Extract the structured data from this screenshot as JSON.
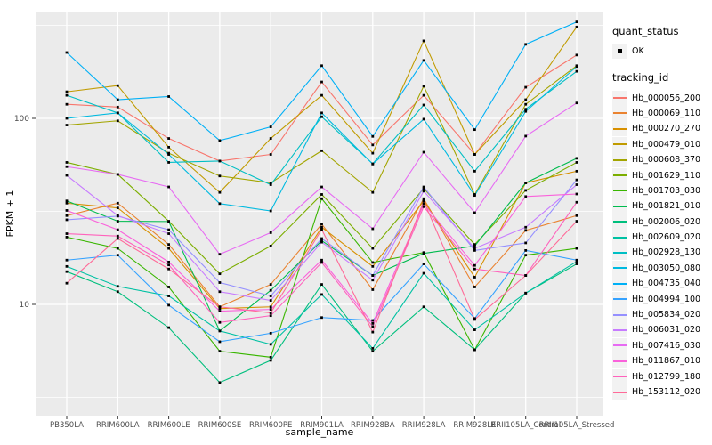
{
  "legend": {
    "quant_title": "quant_status",
    "quant_value": "OK",
    "tracking_title": "tracking_id"
  },
  "chart_data": {
    "type": "line",
    "title": "",
    "xlabel": "sample_name",
    "ylabel": "FPKM + 1",
    "y_scale": "log10",
    "y_tick_labels": [
      "100",
      "10"
    ],
    "y_tick_values": [
      100,
      10
    ],
    "y_minor_values": [
      3.162,
      31.62,
      316.2
    ],
    "ylim": [
      2.5,
      371
    ],
    "grid": "white major and minor on grey panel",
    "legend_position": "right",
    "panel_bg": "#EBEBEB",
    "point_color": "#000000",
    "categories": [
      "PB350LA",
      "RRIM600LA",
      "RRIM600LE",
      "RRIM600SE",
      "RRIM600PE",
      "RRIM901LA",
      "RRIM928BA",
      "RRIM928LA",
      "RRIM928LE",
      "RRII105LA_Control",
      "RRII105LA_Stressed"
    ],
    "series": [
      {
        "name": "Hb_000056_200",
        "color": "#F8766D",
        "values": [
          119,
          115,
          78,
          59,
          64,
          157,
          72,
          133,
          64,
          147,
          219
        ]
      },
      {
        "name": "Hb_000069_110",
        "color": "#EA8331",
        "values": [
          30,
          35,
          21,
          9.7,
          12.8,
          27,
          12,
          37,
          12.4,
          25,
          30
        ]
      },
      {
        "name": "Hb_000270_270",
        "color": "#D89000",
        "values": [
          35,
          33,
          20,
          9.5,
          9.7,
          26,
          16,
          36,
          14,
          45,
          52
        ]
      },
      {
        "name": "Hb_000479_010",
        "color": "#C09B00",
        "values": [
          139,
          150,
          70,
          40,
          78,
          133,
          65,
          261,
          64,
          126,
          310
        ]
      },
      {
        "name": "Hb_000608_370",
        "color": "#A3A500",
        "values": [
          92,
          97,
          65,
          49,
          45,
          67,
          40,
          149,
          39,
          119,
          192
        ]
      },
      {
        "name": "Hb_001629_110",
        "color": "#7CAE00",
        "values": [
          58,
          50,
          28,
          14.6,
          20.6,
          39,
          20,
          42,
          21,
          41,
          58
        ]
      },
      {
        "name": "Hb_001703_030",
        "color": "#39B600",
        "values": [
          23,
          20,
          12.4,
          5.6,
          5.2,
          37,
          16.8,
          19,
          5.7,
          18.4,
          20
        ]
      },
      {
        "name": "Hb_001821_010",
        "color": "#00BB4E",
        "values": [
          36,
          28,
          27.9,
          7.2,
          11.9,
          22,
          14.3,
          18.8,
          20.6,
          45,
          61
        ]
      },
      {
        "name": "Hb_002006_020",
        "color": "#00BF7D",
        "values": [
          15,
          11.7,
          7.5,
          3.8,
          5.0,
          12.8,
          5.6,
          9.7,
          5.7,
          11.5,
          16.5
        ]
      },
      {
        "name": "Hb_002609_020",
        "color": "#00C1A3",
        "values": [
          16,
          12.5,
          11.1,
          7.2,
          6.1,
          11.3,
          5.8,
          14.7,
          7.3,
          11.5,
          17
        ]
      },
      {
        "name": "Hb_002928_130",
        "color": "#00BFC4",
        "values": [
          133,
          107,
          58,
          59,
          44,
          102,
          57,
          118,
          52,
          112,
          179
        ]
      },
      {
        "name": "Hb_003050_080",
        "color": "#00BAE0",
        "values": [
          100,
          107,
          64,
          34.8,
          31.8,
          107,
          56.8,
          99,
          38.5,
          109,
          190
        ]
      },
      {
        "name": "Hb_004735_040",
        "color": "#00B0F6",
        "values": [
          226,
          126,
          131,
          76,
          90,
          192,
          80,
          205,
          87,
          250,
          330
        ]
      },
      {
        "name": "Hb_004994_100",
        "color": "#35A2FF",
        "values": [
          17.3,
          18.4,
          9.9,
          6.3,
          7.0,
          8.5,
          8.2,
          16.5,
          8.4,
          19.5,
          17.3
        ]
      },
      {
        "name": "Hb_005834_020",
        "color": "#9590FF",
        "values": [
          28.5,
          29.8,
          25.2,
          13.1,
          11.1,
          22.6,
          14.3,
          42.8,
          19.5,
          21.4,
          46.7
        ]
      },
      {
        "name": "Hb_006031_020",
        "color": "#C77CFF",
        "values": [
          49.4,
          30,
          24,
          11.7,
          10.5,
          21.6,
          13.5,
          40.6,
          20,
          26,
          44
        ]
      },
      {
        "name": "Hb_007416_030",
        "color": "#E76BF3",
        "values": [
          55,
          50,
          42.8,
          18.6,
          24.3,
          42.8,
          25.5,
          65.8,
          31.1,
          80.3,
          121
        ]
      },
      {
        "name": "Hb_011867_010",
        "color": "#FA62DB",
        "values": [
          32,
          25.2,
          16.9,
          9.2,
          9.4,
          17.3,
          7.9,
          34.7,
          16.2,
          38,
          39.2
        ]
      },
      {
        "name": "Hb_012799_180",
        "color": "#FF62BC",
        "values": [
          24,
          23.3,
          16.3,
          8.0,
          8.7,
          16.8,
          7.6,
          33.5,
          15.5,
          14.3,
          35.4
        ]
      },
      {
        "name": "Hb_153112_020",
        "color": "#FF6A98",
        "values": [
          13,
          22.6,
          15.5,
          9.7,
          9.0,
          25.3,
          7.1,
          35.9,
          8.3,
          14.3,
          28
        ]
      }
    ]
  }
}
